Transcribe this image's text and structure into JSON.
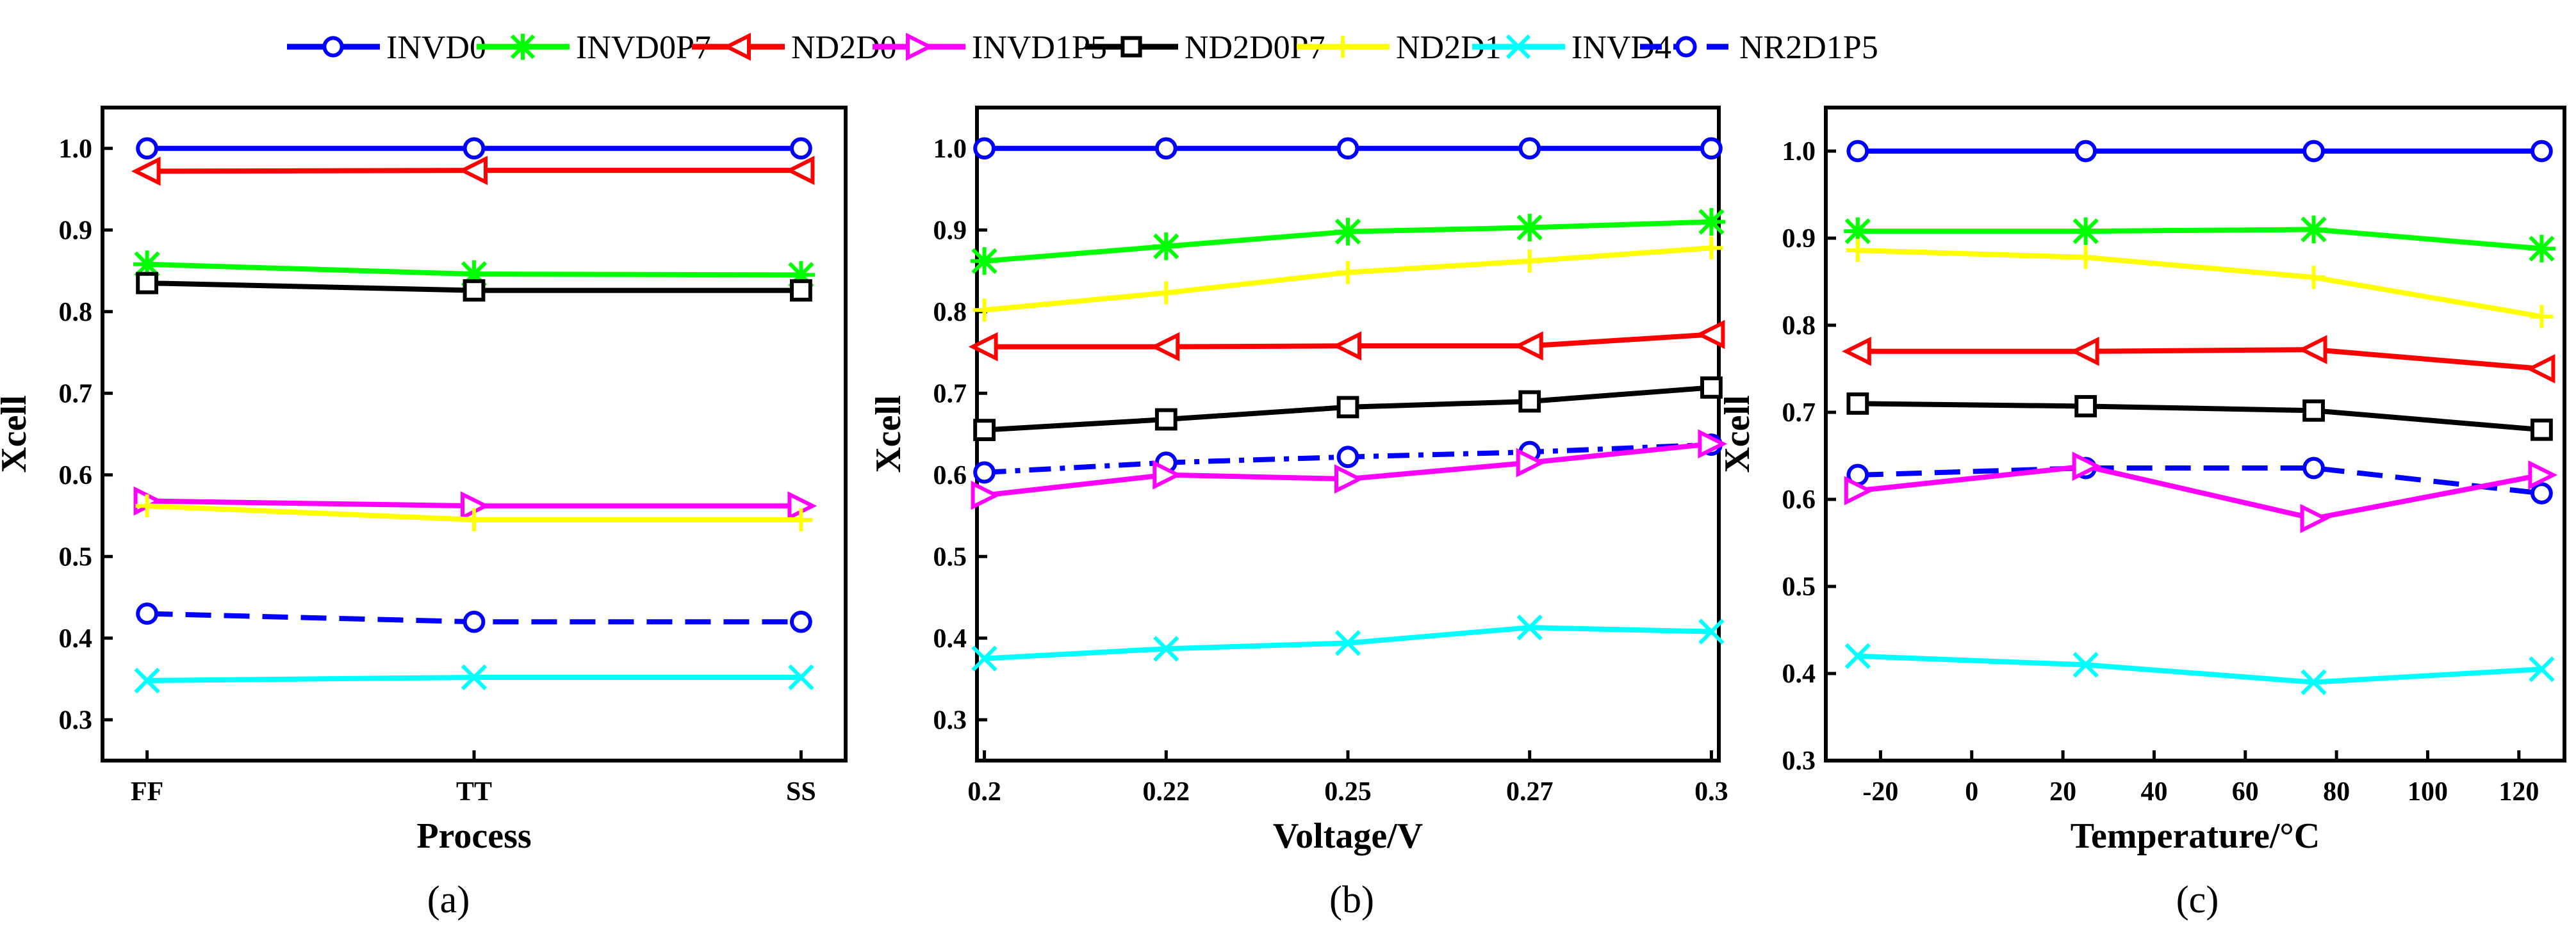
{
  "legend": [
    {
      "name": "INVD0",
      "color": "#0000ff",
      "marker": "circle",
      "dash": "solid"
    },
    {
      "name": "INVD0P7",
      "color": "#00ff00",
      "marker": "asterisk",
      "dash": "solid"
    },
    {
      "name": "ND2D0",
      "color": "#ff0000",
      "marker": "triangle-left",
      "dash": "solid"
    },
    {
      "name": "INVD1P5",
      "color": "#ff00ff",
      "marker": "triangle-right",
      "dash": "solid"
    },
    {
      "name": "ND2D0P7",
      "color": "#000000",
      "marker": "square",
      "dash": "solid"
    },
    {
      "name": "ND2D1",
      "color": "#ffff00",
      "marker": "plus",
      "dash": "solid"
    },
    {
      "name": "INVD4",
      "color": "#00ffff",
      "marker": "x",
      "dash": "solid"
    },
    {
      "name": "NR2D1P5",
      "color": "#0000ff",
      "marker": "circle",
      "dash": "dashed"
    }
  ],
  "chart_data": [
    {
      "id": "a",
      "type": "line",
      "caption": "(a)",
      "xlabel": "Process",
      "ylabel": "Xcell",
      "categories": [
        "FF",
        "TT",
        "SS"
      ],
      "x_tick_labels": [
        "FF",
        "TT",
        "SS"
      ],
      "ylim": [
        0.25,
        1.05
      ],
      "y_ticks": [
        "0.3",
        "0.4",
        "0.5",
        "0.6",
        "0.7",
        "0.8",
        "0.9",
        "1.0"
      ],
      "series": [
        {
          "name": "INVD0",
          "values": [
            1.0,
            1.0,
            1.0
          ]
        },
        {
          "name": "ND2D0",
          "values": [
            0.972,
            0.973,
            0.973
          ]
        },
        {
          "name": "INVD0P7",
          "values": [
            0.858,
            0.846,
            0.845
          ]
        },
        {
          "name": "ND2D0P7",
          "values": [
            0.835,
            0.826,
            0.826
          ]
        },
        {
          "name": "INVD1P5",
          "values": [
            0.568,
            0.562,
            0.562
          ]
        },
        {
          "name": "ND2D1",
          "values": [
            0.562,
            0.545,
            0.545
          ]
        },
        {
          "name": "NR2D1P5",
          "values": [
            0.43,
            0.42,
            0.42
          ]
        },
        {
          "name": "INVD4",
          "values": [
            0.348,
            0.352,
            0.352
          ]
        }
      ]
    },
    {
      "id": "b",
      "type": "line",
      "caption": "(b)",
      "xlabel": "Voltage/V",
      "ylabel": "Xcell",
      "categories": [
        "0.2",
        "0.22",
        "0.25",
        "0.27",
        "0.3"
      ],
      "x_tick_labels": [
        "0.2",
        "0.22",
        "0.25",
        "0.27",
        "0.3"
      ],
      "ylim": [
        0.25,
        1.05
      ],
      "y_ticks": [
        "0.3",
        "0.4",
        "0.5",
        "0.6",
        "0.7",
        "0.8",
        "0.9",
        "1.0"
      ],
      "series": [
        {
          "name": "INVD0",
          "values": [
            1.0,
            1.0,
            1.0,
            1.0,
            1.0
          ]
        },
        {
          "name": "INVD0P7",
          "values": [
            0.862,
            0.88,
            0.898,
            0.903,
            0.91
          ]
        },
        {
          "name": "ND2D1",
          "values": [
            0.802,
            0.823,
            0.848,
            0.862,
            0.878
          ]
        },
        {
          "name": "ND2D0",
          "values": [
            0.757,
            0.757,
            0.758,
            0.758,
            0.772
          ]
        },
        {
          "name": "ND2D0P7",
          "values": [
            0.655,
            0.668,
            0.683,
            0.69,
            0.707
          ]
        },
        {
          "name": "NR2D1P5",
          "values": [
            0.603,
            0.615,
            0.622,
            0.628,
            0.637
          ]
        },
        {
          "name": "INVD1P5",
          "values": [
            0.575,
            0.6,
            0.595,
            0.615,
            0.638
          ]
        },
        {
          "name": "INVD4",
          "values": [
            0.375,
            0.387,
            0.394,
            0.413,
            0.408
          ]
        }
      ]
    },
    {
      "id": "c",
      "type": "line",
      "caption": "(c)",
      "xlabel": "Temperature/°C",
      "ylabel": "Xcell",
      "x": [
        -25,
        25,
        75,
        125
      ],
      "xlim": [
        -32,
        130
      ],
      "x_tick_values": [
        -20,
        0,
        20,
        40,
        60,
        80,
        100,
        120
      ],
      "x_tick_labels": [
        "-20",
        "0",
        "20",
        "40",
        "60",
        "80",
        "100",
        "120"
      ],
      "ylim": [
        0.3,
        1.05
      ],
      "y_ticks": [
        "0.3",
        "0.4",
        "0.5",
        "0.6",
        "0.7",
        "0.8",
        "0.9",
        "1.0"
      ],
      "series": [
        {
          "name": "INVD0",
          "values": [
            1.0,
            1.0,
            1.0,
            1.0
          ]
        },
        {
          "name": "INVD0P7",
          "values": [
            0.908,
            0.908,
            0.91,
            0.888
          ]
        },
        {
          "name": "ND2D1",
          "values": [
            0.886,
            0.878,
            0.855,
            0.81
          ]
        },
        {
          "name": "ND2D0",
          "values": [
            0.77,
            0.77,
            0.772,
            0.75
          ]
        },
        {
          "name": "ND2D0P7",
          "values": [
            0.71,
            0.707,
            0.702,
            0.68
          ]
        },
        {
          "name": "NR2D1P5",
          "values": [
            0.628,
            0.636,
            0.636,
            0.607
          ]
        },
        {
          "name": "INVD1P5",
          "values": [
            0.61,
            0.638,
            0.578,
            0.628
          ]
        },
        {
          "name": "INVD4",
          "values": [
            0.42,
            0.41,
            0.39,
            0.405
          ]
        }
      ]
    }
  ]
}
